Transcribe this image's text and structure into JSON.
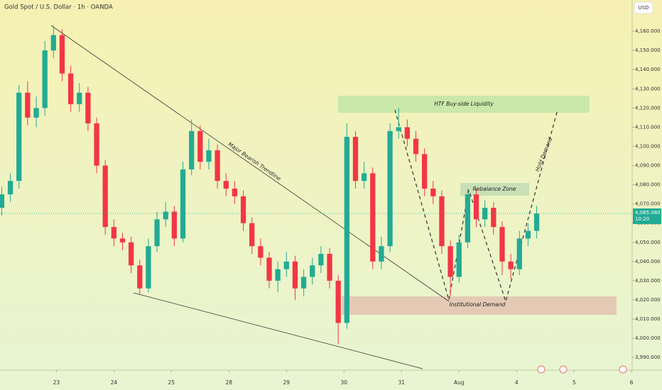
{
  "chart_data": {
    "type": "candlestick",
    "title": "Gold Spot / U.S. Dollar · 1h · OANDA",
    "currency": "USD",
    "up_color": "#22ab94",
    "down_color": "#f23645",
    "x": [
      -0.95,
      -0.8,
      -0.65,
      -0.5,
      -0.35,
      -0.2,
      -0.05,
      0.1,
      0.25,
      0.4,
      0.55,
      0.7,
      0.85,
      1,
      1.15,
      1.3,
      1.45,
      1.6,
      1.75,
      1.9,
      2.05,
      2.2,
      2.35,
      2.5,
      2.65,
      2.8,
      2.95,
      3.1,
      3.25,
      3.4,
      3.55,
      3.7,
      3.85,
      4,
      4.15,
      4.3,
      4.45,
      4.6,
      4.75,
      4.9,
      5.05,
      5.2,
      5.35,
      5.5,
      5.65,
      5.8,
      5.95,
      6.1,
      6.25,
      6.4,
      6.55,
      6.7,
      6.85,
      7,
      7.15,
      7.3,
      7.45,
      7.6,
      7.75,
      7.9,
      8.05,
      8.2,
      8.35
    ],
    "open": [
      4068,
      4075,
      4082,
      4128,
      4115,
      4120,
      4150,
      4158,
      4138,
      4122,
      4128,
      4112,
      4090,
      4058,
      4052,
      4050,
      4038,
      4026,
      4048,
      4062,
      4066,
      4052,
      4088,
      4108,
      4092,
      4098,
      4082,
      4078,
      4074,
      4060,
      4048,
      4042,
      4030,
      4036,
      4040,
      4026,
      4032,
      4038,
      4044,
      4030,
      4008,
      4105,
      4082,
      4086,
      4040,
      4048,
      4108,
      4110,
      4104,
      4096,
      4078,
      4074,
      4048,
      4032,
      4050,
      4075,
      4062,
      4068,
      4058,
      4040,
      4036,
      4052,
      4056
    ],
    "high": [
      4079,
      4086,
      4132,
      4134,
      4126,
      4155,
      4163,
      4161,
      4142,
      4133,
      4131,
      4115,
      4093,
      4062,
      4055,
      4053,
      4041,
      4052,
      4066,
      4071,
      4069,
      4092,
      4114,
      4111,
      4104,
      4101,
      4086,
      4082,
      4077,
      4063,
      4052,
      4045,
      4040,
      4045,
      4043,
      4036,
      4042,
      4048,
      4047,
      4033,
      4112,
      4108,
      4092,
      4089,
      4053,
      4112,
      4120,
      4114,
      4108,
      4099,
      4082,
      4077,
      4051,
      4054,
      4078,
      4078,
      4072,
      4071,
      4061,
      4044,
      4056,
      4060,
      4069
    ],
    "low": [
      4064,
      4071,
      4078,
      4111,
      4110,
      4116,
      4146,
      4134,
      4118,
      4118,
      4108,
      4086,
      4054,
      4048,
      4046,
      4034,
      4023,
      4024,
      4045,
      4058,
      4048,
      4050,
      4085,
      4088,
      4088,
      4078,
      4074,
      4070,
      4056,
      4044,
      4038,
      4026,
      4024,
      4032,
      4020,
      4022,
      4028,
      4034,
      4026,
      3997,
      4005,
      4078,
      4078,
      4036,
      4036,
      4045,
      4104,
      4100,
      4092,
      4074,
      4070,
      4044,
      4022,
      4029,
      4047,
      4058,
      4058,
      4054,
      4033,
      4031,
      4033,
      4048,
      4052
    ],
    "close": [
      4075,
      4082,
      4128,
      4115,
      4120,
      4150,
      4158,
      4138,
      4122,
      4128,
      4112,
      4090,
      4058,
      4052,
      4050,
      4038,
      4026,
      4048,
      4062,
      4066,
      4052,
      4088,
      4108,
      4092,
      4098,
      4082,
      4078,
      4074,
      4060,
      4048,
      4042,
      4030,
      4036,
      4040,
      4026,
      4032,
      4038,
      4044,
      4030,
      4008,
      4105,
      4082,
      4086,
      4040,
      4048,
      4108,
      4110,
      4104,
      4096,
      4078,
      4074,
      4048,
      4032,
      4050,
      4075,
      4062,
      4068,
      4058,
      4040,
      4036,
      4052,
      4056,
      4065
    ],
    "xlim": [
      -0.98,
      10.01
    ],
    "xticks": [
      {
        "value": 0,
        "label": "23"
      },
      {
        "value": 1,
        "label": "24"
      },
      {
        "value": 2,
        "label": "25"
      },
      {
        "value": 3,
        "label": "28"
      },
      {
        "value": 4,
        "label": "29"
      },
      {
        "value": 5,
        "label": "30"
      },
      {
        "value": 6,
        "label": "31"
      },
      {
        "value": 7,
        "label": "Aug"
      },
      {
        "value": 8,
        "label": "4"
      },
      {
        "value": 9,
        "label": "5"
      },
      {
        "value": 10,
        "label": "6"
      }
    ],
    "ylim": [
      3983.4,
      4176.3
    ],
    "yticks": [
      {
        "value": 3990,
        "label": "3,990.000"
      },
      {
        "value": 4000,
        "label": "4,000.000"
      },
      {
        "value": 4010,
        "label": "4,010.000"
      },
      {
        "value": 4020,
        "label": "4,020.000"
      },
      {
        "value": 4030,
        "label": "4,030.000"
      },
      {
        "value": 4040,
        "label": "4,040.000"
      },
      {
        "value": 4050,
        "label": "4,050.000"
      },
      {
        "value": 4060,
        "label": "4,060.000"
      },
      {
        "value": 4070,
        "label": "4,070.000"
      },
      {
        "value": 4080,
        "label": "4,080.000"
      },
      {
        "value": 4090,
        "label": "4,090.000"
      },
      {
        "value": 4100,
        "label": "4,100.000"
      },
      {
        "value": 4110,
        "label": "4,110.000"
      },
      {
        "value": 4120,
        "label": "4,120.000"
      },
      {
        "value": 4130,
        "label": "4,130.000"
      },
      {
        "value": 4140,
        "label": "4,140.000"
      },
      {
        "value": 4150,
        "label": "4,150.000"
      },
      {
        "value": 4160,
        "label": "4,160.000"
      }
    ],
    "last_price": {
      "value": 4065.08,
      "label": "4,065.080"
    },
    "countdown": "10:20",
    "grid": false,
    "annotations": {
      "trendline": "Major Bearish Trendline",
      "liquidity": "HTF Buy-side Liquidity",
      "rebalance": "Rebalance Zone",
      "demand": "Institutional Demand",
      "hold": "Hold Demand"
    }
  }
}
